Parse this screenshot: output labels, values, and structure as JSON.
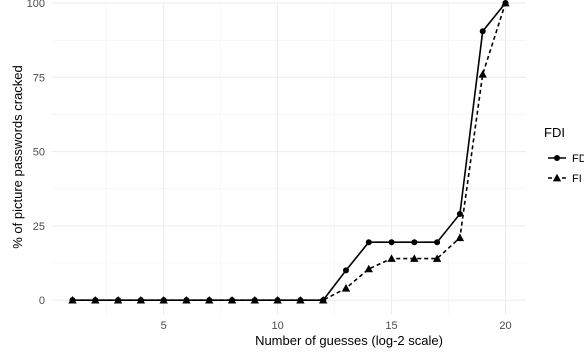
{
  "chart_data": {
    "type": "line",
    "xlabel": "Number of guesses (log-2 scale)",
    "ylabel": "% of picture passwords cracked",
    "xlim": [
      0.1,
      20.9
    ],
    "ylim": [
      -5,
      100
    ],
    "x_ticks": [
      5,
      10,
      15,
      20
    ],
    "y_ticks": [
      0,
      25,
      50,
      75,
      100
    ],
    "grid": true,
    "legend": {
      "title": "FDI",
      "position": "right"
    },
    "x": [
      1,
      2,
      3,
      4,
      5,
      6,
      7,
      8,
      9,
      10,
      11,
      12,
      13,
      14,
      15,
      16,
      17,
      18,
      19,
      20
    ],
    "series": [
      {
        "name": "FDI",
        "marker": "circle",
        "line": "solid",
        "values": [
          0,
          0,
          0,
          0,
          0,
          0,
          0,
          0,
          0,
          0,
          0,
          0,
          10,
          19.5,
          19.5,
          19.5,
          19.5,
          29,
          90.5,
          100
        ]
      },
      {
        "name": "FI",
        "marker": "triangle",
        "line": "dashed",
        "values": [
          0,
          0,
          0,
          0,
          0,
          0,
          0,
          0,
          0,
          0,
          0,
          0,
          4,
          10.5,
          14,
          14,
          14,
          21,
          76,
          100
        ]
      }
    ]
  }
}
